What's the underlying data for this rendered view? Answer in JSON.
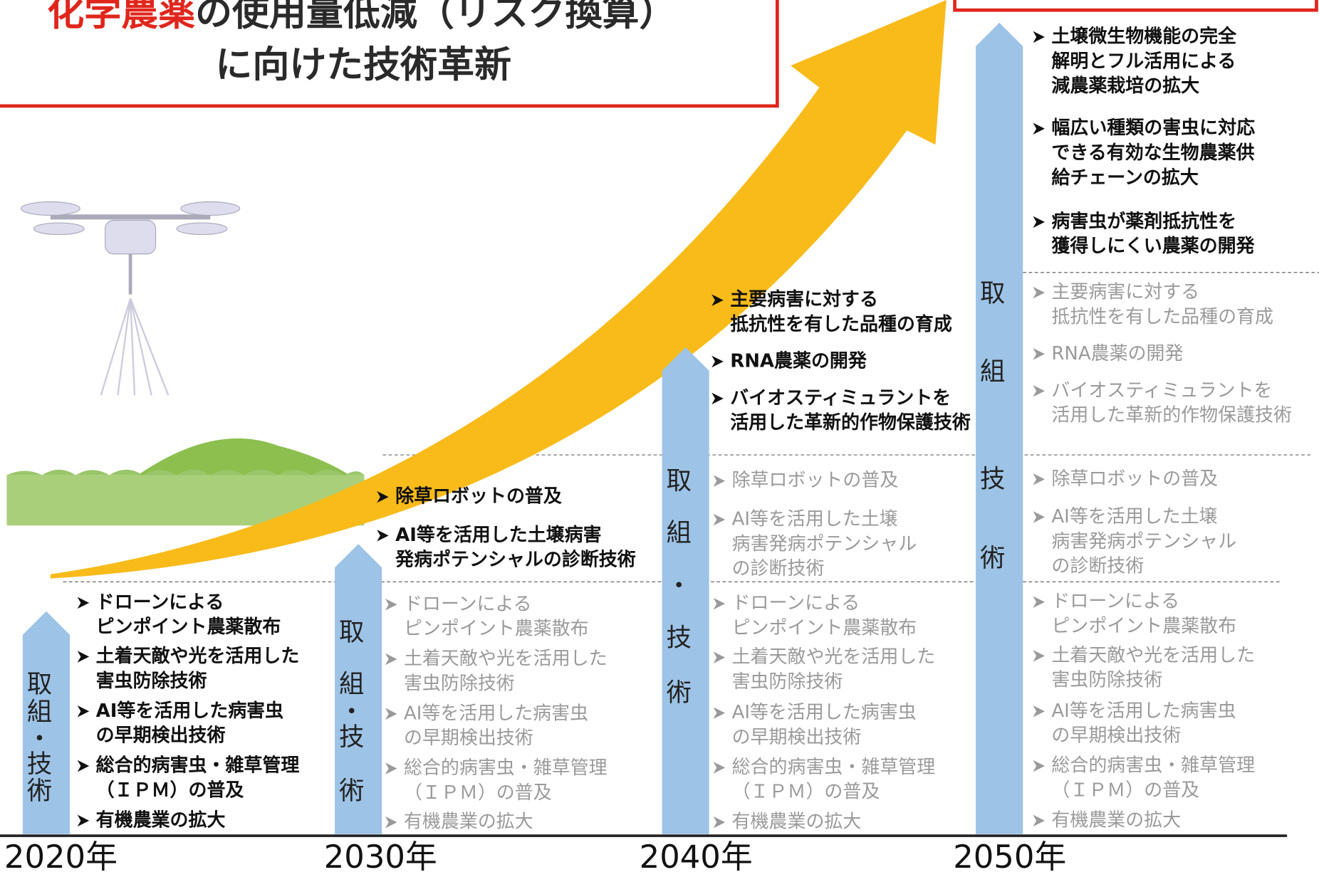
{
  "header": {
    "title_red": "化学農薬",
    "title_rest": "の使用量低減（リスク換算）",
    "title_line2": "に向けた技術革新"
  },
  "columns": [
    {
      "year": "2020年",
      "label": [
        "取",
        "組",
        "・",
        "技",
        "術"
      ],
      "items": [
        {
          "bold": true,
          "lines": [
            "ドローンによる",
            "ピンポイント農薬散布"
          ]
        },
        {
          "bold": true,
          "lines": [
            "土着天敵や光を活用した",
            "害虫防除技術"
          ]
        },
        {
          "bold": true,
          "lines": [
            "AI等を活用した病害虫",
            "の早期検出技術"
          ]
        },
        {
          "bold": true,
          "lines": [
            "総合的病害虫・雑草管理",
            "（ＩＰＭ）の普及"
          ]
        },
        {
          "bold": true,
          "lines": [
            "有機農業の拡大"
          ]
        }
      ]
    },
    {
      "year": "2030年",
      "label": [
        "取",
        "組",
        "・",
        "技",
        "術"
      ],
      "items": [
        {
          "bold": true,
          "lines": [
            "除草ロボットの普及"
          ]
        },
        {
          "bold": true,
          "lines": [
            "AI等を活用した土壌病害",
            "発病ポテンシャルの診断技術"
          ]
        },
        {
          "bold": false,
          "lines": [
            "ドローンによる",
            "ピンポイント農薬散布"
          ]
        },
        {
          "bold": false,
          "lines": [
            "土着天敵や光を活用した",
            "害虫防除技術"
          ]
        },
        {
          "bold": false,
          "lines": [
            "AI等を活用した病害虫",
            "の早期検出技術"
          ]
        },
        {
          "bold": false,
          "lines": [
            "総合的病害虫・雑草管理",
            "（ＩＰＭ）の普及"
          ]
        },
        {
          "bold": false,
          "lines": [
            "有機農業の拡大"
          ]
        }
      ]
    },
    {
      "year": "2040年",
      "label": [
        "取",
        "組",
        "・",
        "技",
        "術"
      ],
      "items": [
        {
          "bold": true,
          "lines": [
            "主要病害に対する",
            "抵抗性を有した品種の育成"
          ]
        },
        {
          "bold": true,
          "lines": [
            "RNA農薬の開発"
          ]
        },
        {
          "bold": true,
          "lines": [
            "バイオスティミュラントを",
            "活用した革新的作物保護技術"
          ]
        },
        {
          "bold": false,
          "lines": [
            "除草ロボットの普及"
          ]
        },
        {
          "bold": false,
          "lines": [
            "AI等を活用した土壌",
            "病害発病ポテンシャル",
            "の診断技術"
          ]
        },
        {
          "bold": false,
          "lines": [
            "ドローンによる",
            "ピンポイント農薬散布"
          ]
        },
        {
          "bold": false,
          "lines": [
            "土着天敵や光を活用した",
            "害虫防除技術"
          ]
        },
        {
          "bold": false,
          "lines": [
            "AI等を活用した病害虫",
            "の早期検出技術"
          ]
        },
        {
          "bold": false,
          "lines": [
            "総合的病害虫・雑草管理",
            "（ＩＰＭ）の普及"
          ]
        },
        {
          "bold": false,
          "lines": [
            "有機農業の拡大"
          ]
        }
      ]
    },
    {
      "year": "2050年",
      "label": [
        "取",
        "組",
        "技",
        "術"
      ],
      "items": [
        {
          "bold": true,
          "lines": [
            "土壌微生物機能の完全",
            "解明とフル活用による",
            "減農薬栽培の拡大"
          ]
        },
        {
          "bold": true,
          "lines": [
            "幅広い種類の害虫に対応",
            "できる有効な生物農薬供",
            "給チェーンの拡大"
          ]
        },
        {
          "bold": true,
          "lines": [
            "病害虫が薬剤抵抗性を",
            "獲得しにくい農薬の開発"
          ]
        },
        {
          "bold": false,
          "lines": [
            "主要病害に対する",
            "抵抗性を有した品種の育成"
          ]
        },
        {
          "bold": false,
          "lines": [
            "RNA農薬の開発"
          ]
        },
        {
          "bold": false,
          "lines": [
            "バイオスティミュラントを",
            "活用した革新的作物保護技術"
          ]
        },
        {
          "bold": false,
          "lines": [
            "除草ロボットの普及"
          ]
        },
        {
          "bold": false,
          "lines": [
            "AI等を活用した土壌",
            "病害発病ポテンシャル",
            "の診断技術"
          ]
        },
        {
          "bold": false,
          "lines": [
            "ドローンによる",
            "ピンポイント農薬散布"
          ]
        },
        {
          "bold": false,
          "lines": [
            "土着天敵や光を活用した",
            "害虫防除技術"
          ]
        },
        {
          "bold": false,
          "lines": [
            "AI等を活用した病害虫",
            "の早期検出技術"
          ]
        },
        {
          "bold": false,
          "lines": [
            "総合的病害虫・雑草管理",
            "（ＩＰＭ）の普及"
          ]
        },
        {
          "bold": false,
          "lines": [
            "有機農業の拡大"
          ]
        }
      ]
    }
  ]
}
